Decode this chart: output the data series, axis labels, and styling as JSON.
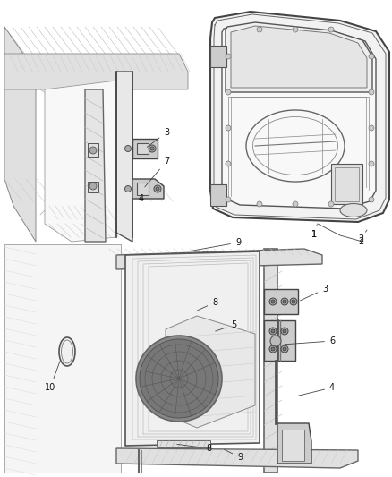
{
  "background_color": "#ffffff",
  "figure_width": 4.38,
  "figure_height": 5.33,
  "dpi": 100,
  "line_color": "#555555",
  "light_line": "#aaaaaa",
  "fill_light": "#f0f0f0",
  "fill_mid": "#e0e0e0",
  "fill_dark": "#cccccc",
  "text_color": "#111111",
  "text_size": 7
}
